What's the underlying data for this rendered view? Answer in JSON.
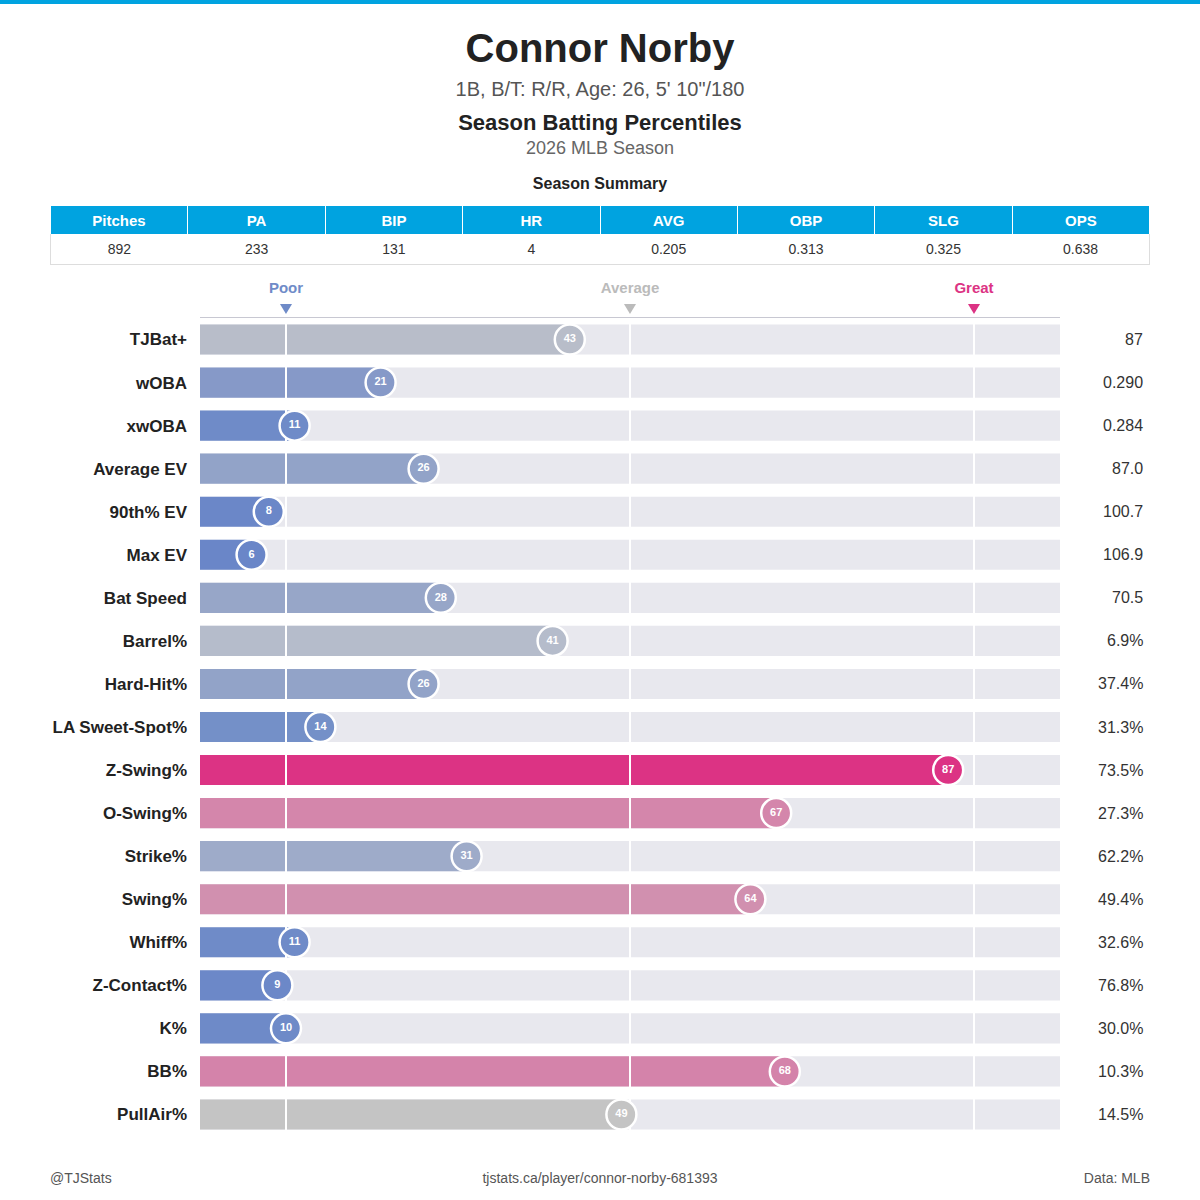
{
  "header": {
    "title": "Connor Norby",
    "subtitle": "1B, B/T: R/R, Age: 26, 5' 10\"/180",
    "heading": "Season Batting Percentiles",
    "season": "2026 MLB Season"
  },
  "summary": {
    "title": "Season Summary",
    "columns": [
      "Pitches",
      "PA",
      "BIP",
      "HR",
      "AVG",
      "OBP",
      "SLG",
      "OPS"
    ],
    "values": [
      "892",
      "233",
      "131",
      "4",
      "0.205",
      "0.313",
      "0.325",
      "0.638"
    ]
  },
  "chart_data": {
    "type": "bar",
    "orientation": "horizontal",
    "categories": [
      "TJBat+",
      "wOBA",
      "xwOBA",
      "Average EV",
      "90th% EV",
      "Max EV",
      "Bat Speed",
      "Barrel%",
      "Hard-Hit%",
      "LA Sweet-Spot%",
      "Z-Swing%",
      "O-Swing%",
      "Strike%",
      "Swing%",
      "Whiff%",
      "Z-Contact%",
      "K%",
      "BB%",
      "PullAir%"
    ],
    "values": [
      43,
      21,
      11,
      26,
      8,
      6,
      28,
      41,
      26,
      14,
      87,
      67,
      31,
      64,
      11,
      9,
      10,
      68,
      49
    ],
    "stat_values": [
      "87",
      "0.290",
      "0.284",
      "87.0",
      "100.7",
      "106.9",
      "70.5",
      "6.9%",
      "37.4%",
      "31.3%",
      "73.5%",
      "27.3%",
      "62.2%",
      "49.4%",
      "32.6%",
      "76.8%",
      "30.0%",
      "10.3%",
      "14.5%"
    ],
    "colors": [
      "#b8bdc9",
      "#8699c8",
      "#6f8bc8",
      "#92a3c8",
      "#6b87c8",
      "#6a86c8",
      "#97a6c8",
      "#b5bccb",
      "#92a3c8",
      "#7490c8",
      "#dc3384",
      "#d486ab",
      "#9eabc9",
      "#d190af",
      "#6f8bc8",
      "#6c88c8",
      "#6e8ac8",
      "#d483aa",
      "#c4c4c4"
    ],
    "xlim": [
      0,
      100
    ],
    "xticks": [
      {
        "value": 10,
        "label": "Poor"
      },
      {
        "value": 50,
        "label": "Average"
      },
      {
        "value": 90,
        "label": "Great"
      }
    ],
    "grid": true,
    "data_labels": true
  },
  "footer": {
    "left": "@TJStats",
    "center": "tjstats.ca/player/connor-norby-681393",
    "right": "Data: MLB"
  }
}
